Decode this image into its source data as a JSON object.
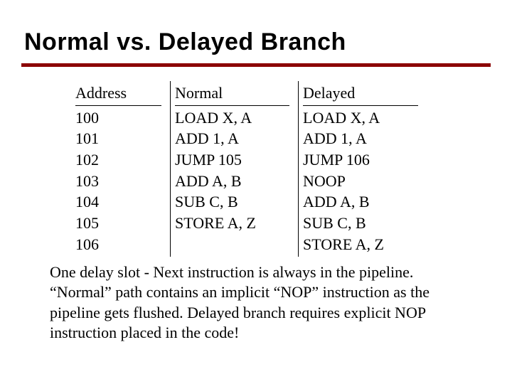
{
  "title": "Normal vs. Delayed Branch",
  "rule_color": "#8b0000",
  "table": {
    "headers": {
      "address": "Address",
      "normal": "Normal",
      "delayed": "Delayed"
    },
    "address": [
      "100",
      "101",
      "102",
      "103",
      "104",
      "105",
      "106"
    ],
    "normal": [
      "LOAD X, A",
      "ADD 1, A",
      "JUMP 105",
      "ADD A, B",
      "SUB C, B",
      "STORE A, Z",
      ""
    ],
    "delayed": [
      "LOAD X, A",
      "ADD 1, A",
      "JUMP 106",
      "NOOP",
      "ADD A, B",
      "SUB C, B",
      "STORE A, Z"
    ]
  },
  "caption": "One delay slot - Next instruction is always in the pipeline. “Normal” path contains an implicit “NOP” instruction as the pipeline gets flushed.  Delayed branch requires explicit NOP instruction placed in the code!",
  "fonts": {
    "title_family": "Arial Black / sans-serif heavy",
    "body_family": "Georgia / serif",
    "title_size_pt": 26,
    "body_size_pt": 17
  },
  "colors": {
    "background": "#ffffff",
    "text": "#000000",
    "rule": "#8b0000"
  }
}
